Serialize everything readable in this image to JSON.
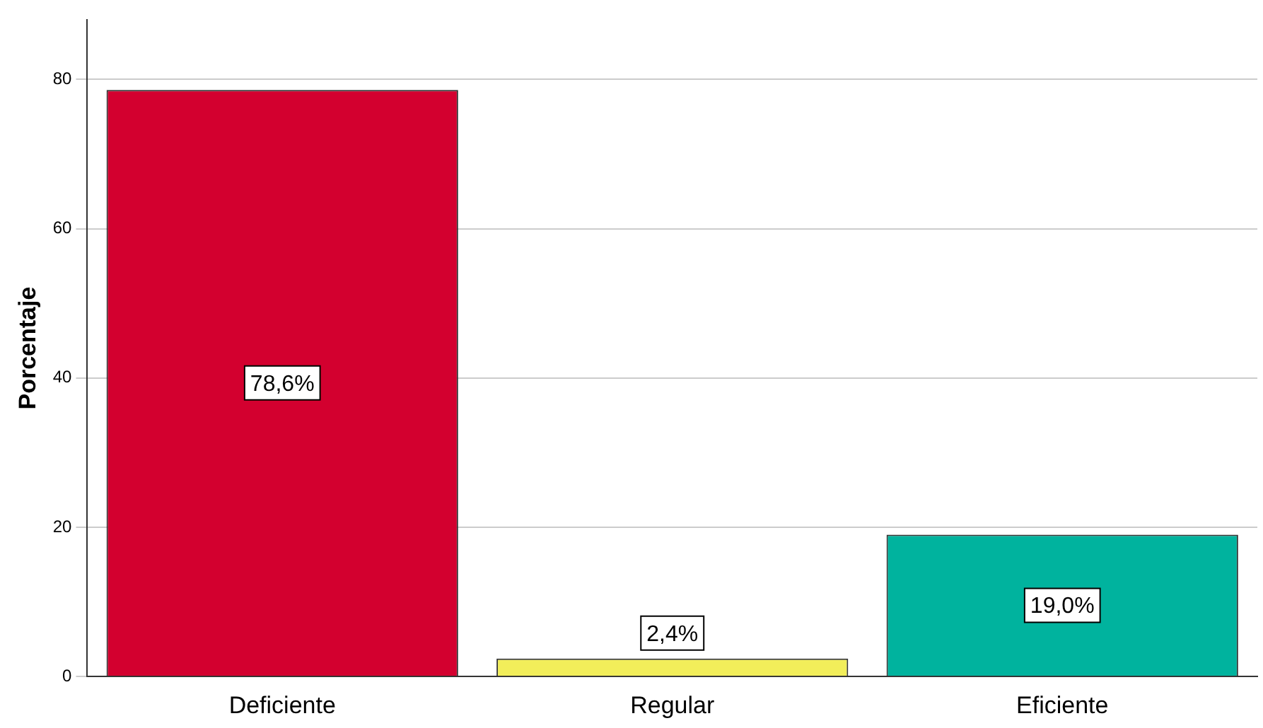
{
  "chart_data": {
    "type": "bar",
    "ylabel": "Porcentaje",
    "categories": [
      "Deficiente",
      "Regular",
      "Eficiente"
    ],
    "values": [
      78.6,
      2.4,
      19.0
    ],
    "value_labels": [
      "78,6%",
      "2,4%",
      "19,0%"
    ],
    "colors": [
      "#d3002f",
      "#f2ee5a",
      "#00b39e"
    ],
    "ylim": [
      0,
      88
    ],
    "yticks": [
      0,
      20,
      40,
      60,
      80
    ],
    "grid": "y",
    "legend": false
  }
}
